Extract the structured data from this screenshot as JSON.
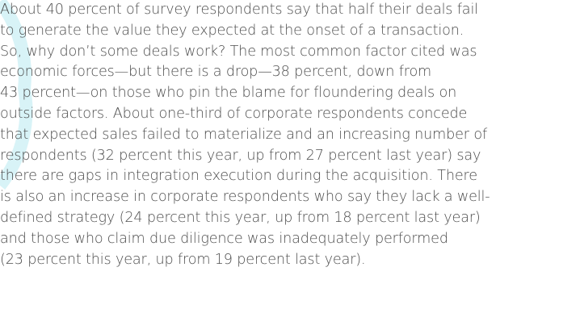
{
  "paragraph": {
    "lines": [
      "About 40 percent of survey respondents say that half their deals fail",
      "to generate the value they expected at the onset of a transaction.",
      "So, why don’t some deals work? The most common factor cited was",
      "economic forces—but there is a drop—38 percent, down from",
      "43 percent—on those who pin the blame for floundering deals on",
      "outside factors. About one-third of corporate respondents concede",
      "that expected sales failed to materialize and an increasing number of",
      "respondents (32 percent this year, up from 27 percent last year) say",
      "there are gaps in integration execution during the acquisition. There",
      "is also an increase in corporate respondents who say they lack a well-",
      "defined strategy (24 percent this year, up from 18 percent last year)",
      "and those who claim due diligence was inadequately performed",
      "(23 percent this year, up from 19 percent last year)."
    ]
  }
}
